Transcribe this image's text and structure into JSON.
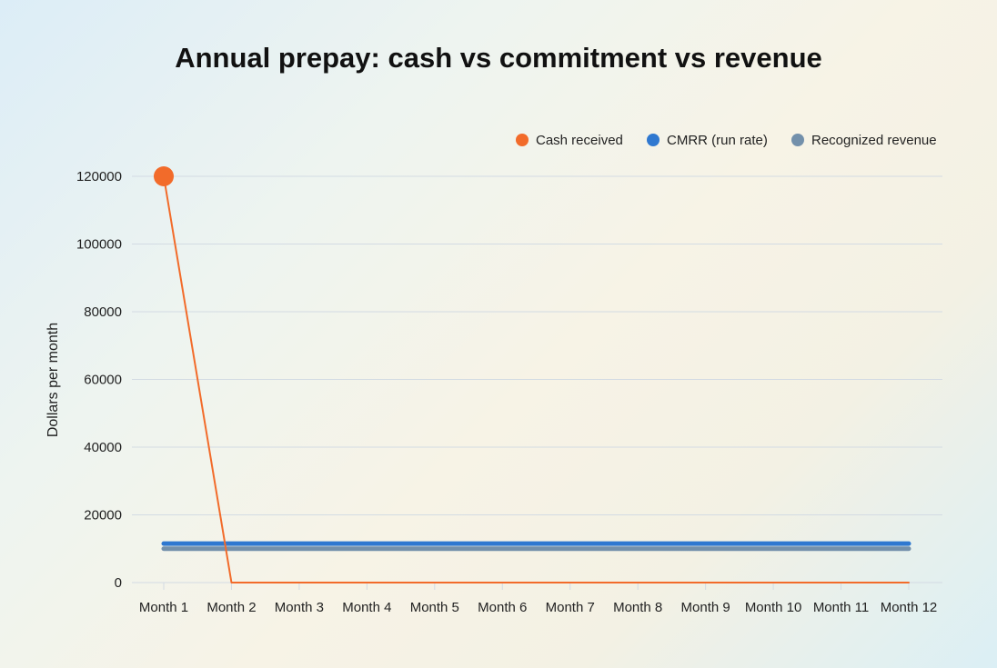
{
  "chart_data": {
    "type": "line",
    "title": "Annual prepay: cash vs commitment vs revenue",
    "xlabel": "",
    "ylabel": "Dollars per month",
    "categories": [
      "Month 1",
      "Month 2",
      "Month 3",
      "Month 4",
      "Month 5",
      "Month 6",
      "Month 7",
      "Month 8",
      "Month 9",
      "Month 10",
      "Month 11",
      "Month 12"
    ],
    "ylim": [
      0,
      120000
    ],
    "yticks": [
      0,
      20000,
      40000,
      60000,
      80000,
      100000,
      120000
    ],
    "grid": true,
    "legend_position": "top-right",
    "series": [
      {
        "name": "Cash received",
        "color": "#f26b2a",
        "values": [
          120000,
          0,
          0,
          0,
          0,
          0,
          0,
          0,
          0,
          0,
          0,
          0
        ]
      },
      {
        "name": "CMRR (run rate)",
        "color": "#2f78d0",
        "values": [
          11500,
          11500,
          11500,
          11500,
          11500,
          11500,
          11500,
          11500,
          11500,
          11500,
          11500,
          11500
        ]
      },
      {
        "name": "Recognized revenue",
        "color": "#7390ab",
        "values": [
          10000,
          10000,
          10000,
          10000,
          10000,
          10000,
          10000,
          10000,
          10000,
          10000,
          10000,
          10000
        ]
      }
    ]
  }
}
